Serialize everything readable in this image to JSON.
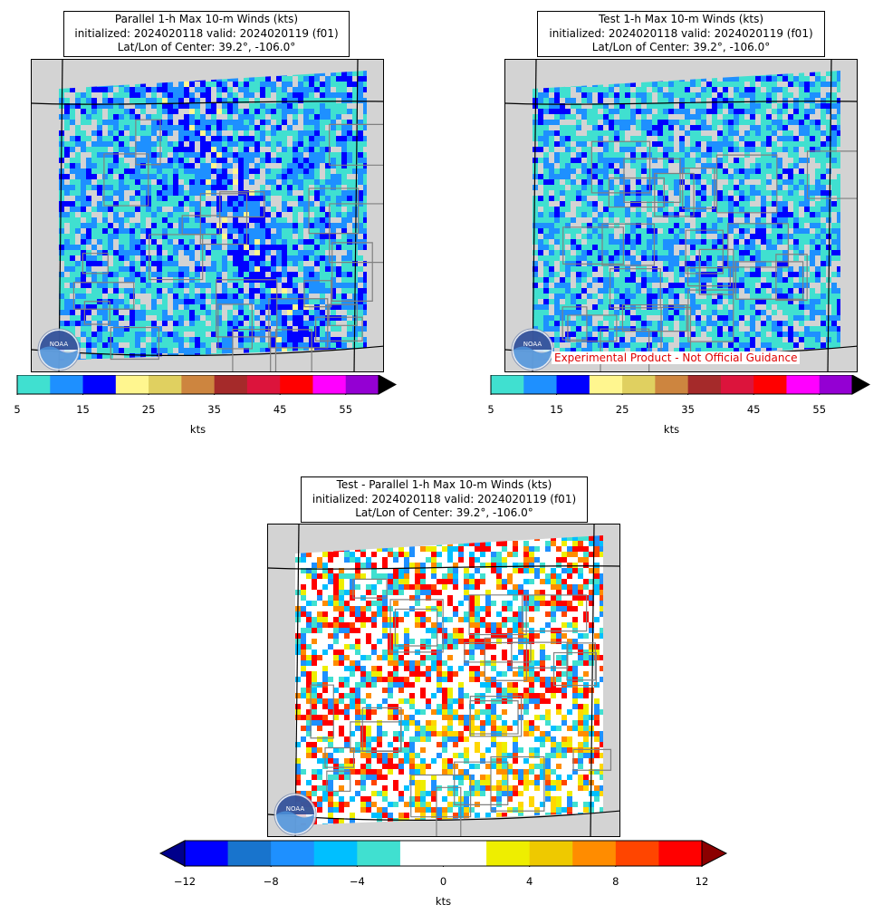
{
  "panels": [
    {
      "id": "parallel",
      "title_lines": [
        "Parallel 1-h Max 10-m Winds (kts)",
        "initialized: 2024020118 valid: 2024020119 (f01)",
        "Lat/Lon of Center: 39.2°, -106.0°"
      ],
      "colorbar": {
        "colors": [
          "#40e0d0",
          "#1e90ff",
          "#0000ff",
          "#fff68f",
          "#e0d060",
          "#cd853f",
          "#a52a2a",
          "#dc143c",
          "#ff0000",
          "#ff00ff",
          "#9400d3"
        ],
        "ticks": [
          "5",
          "15",
          "25",
          "35",
          "45",
          "55"
        ],
        "unit": "kts",
        "extend": "max",
        "extend_color": "#000000"
      }
    },
    {
      "id": "test",
      "title_lines": [
        "Test 1-h Max 10-m Winds (kts)",
        "initialized: 2024020118 valid: 2024020119 (f01)",
        "Lat/Lon of Center: 39.2°, -106.0°"
      ],
      "disclaimer": "Experimental Product - Not Official Guidance",
      "colorbar": {
        "colors": [
          "#40e0d0",
          "#1e90ff",
          "#0000ff",
          "#fff68f",
          "#e0d060",
          "#cd853f",
          "#a52a2a",
          "#dc143c",
          "#ff0000",
          "#ff00ff",
          "#9400d3"
        ],
        "ticks": [
          "5",
          "15",
          "25",
          "35",
          "45",
          "55"
        ],
        "unit": "kts",
        "extend": "max",
        "extend_color": "#000000"
      }
    },
    {
      "id": "diff",
      "title_lines": [
        "Test - Parallel 1-h Max 10-m Winds (kts)",
        "initialized: 2024020118 valid: 2024020119 (f01)",
        "Lat/Lon of Center: 39.2°, -106.0°"
      ],
      "colorbar": {
        "colors": [
          "#0000ff",
          "#1874cd",
          "#1e90ff",
          "#00bfff",
          "#40e0d0",
          "#ffffff",
          "#ffffff",
          "#eeee00",
          "#eec900",
          "#ff8c00",
          "#ff4500",
          "#ff0000"
        ],
        "ticks": [
          "−12",
          "−8",
          "−4",
          "0",
          "4",
          "8",
          "12"
        ],
        "unit": "kts",
        "extend": "both",
        "extend_low_color": "#00008b",
        "extend_high_color": "#8b0000"
      }
    }
  ],
  "colors": {
    "land": "#d3d3d3",
    "state_border": "#000000",
    "county_border": "#808080"
  },
  "logo_text": "NOAA"
}
